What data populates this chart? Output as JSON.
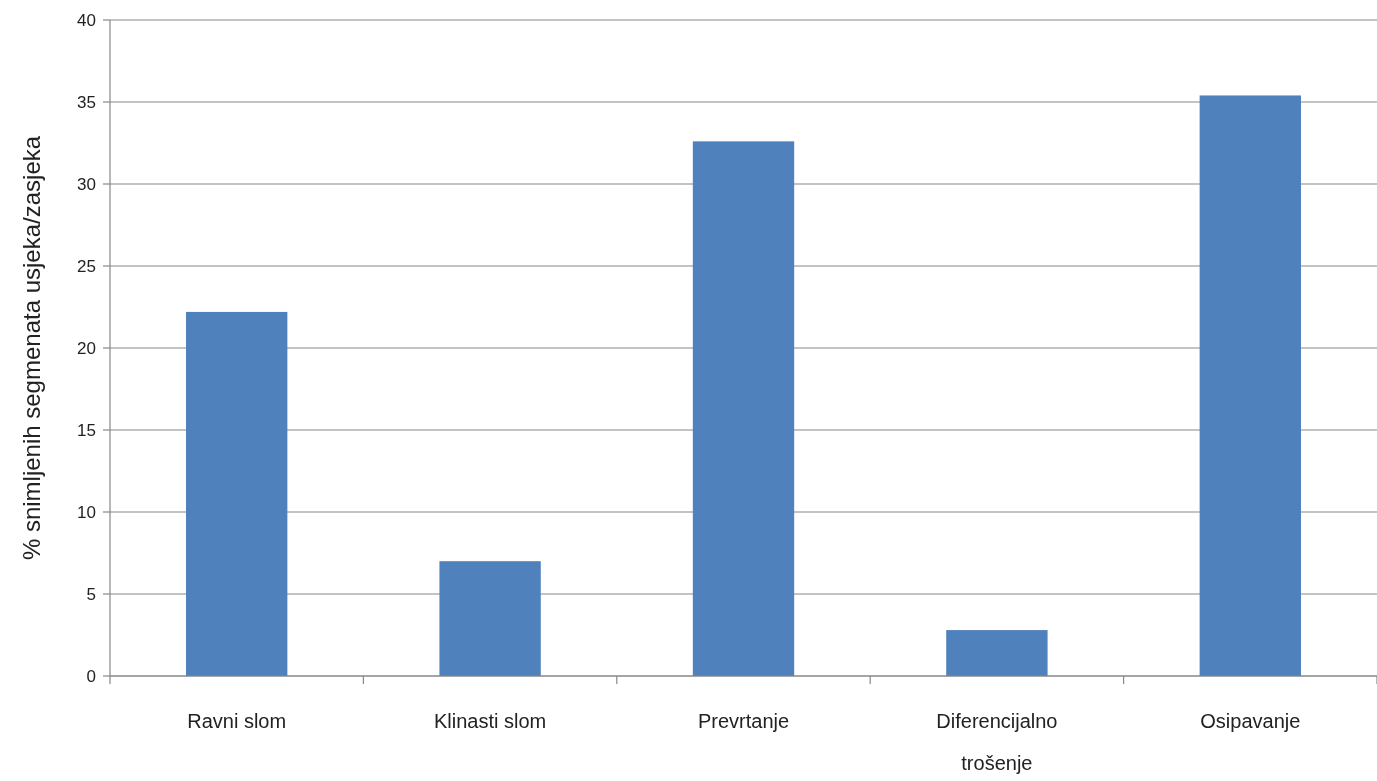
{
  "chart_data": {
    "type": "bar",
    "ylabel": "% snimljenih segmenata usjeka/zasjeka",
    "categories": [
      "Ravni slom",
      "Klinasti slom",
      "Prevrtanje",
      "Diferencijalno trošenje",
      "Osipavanje"
    ],
    "values": [
      22.2,
      7.0,
      32.6,
      2.8,
      35.4
    ],
    "color": "#4f81bd",
    "ylim": [
      0,
      40
    ],
    "yticks": [
      0,
      5,
      10,
      15,
      20,
      25,
      30,
      35,
      40
    ],
    "grid": "y"
  }
}
